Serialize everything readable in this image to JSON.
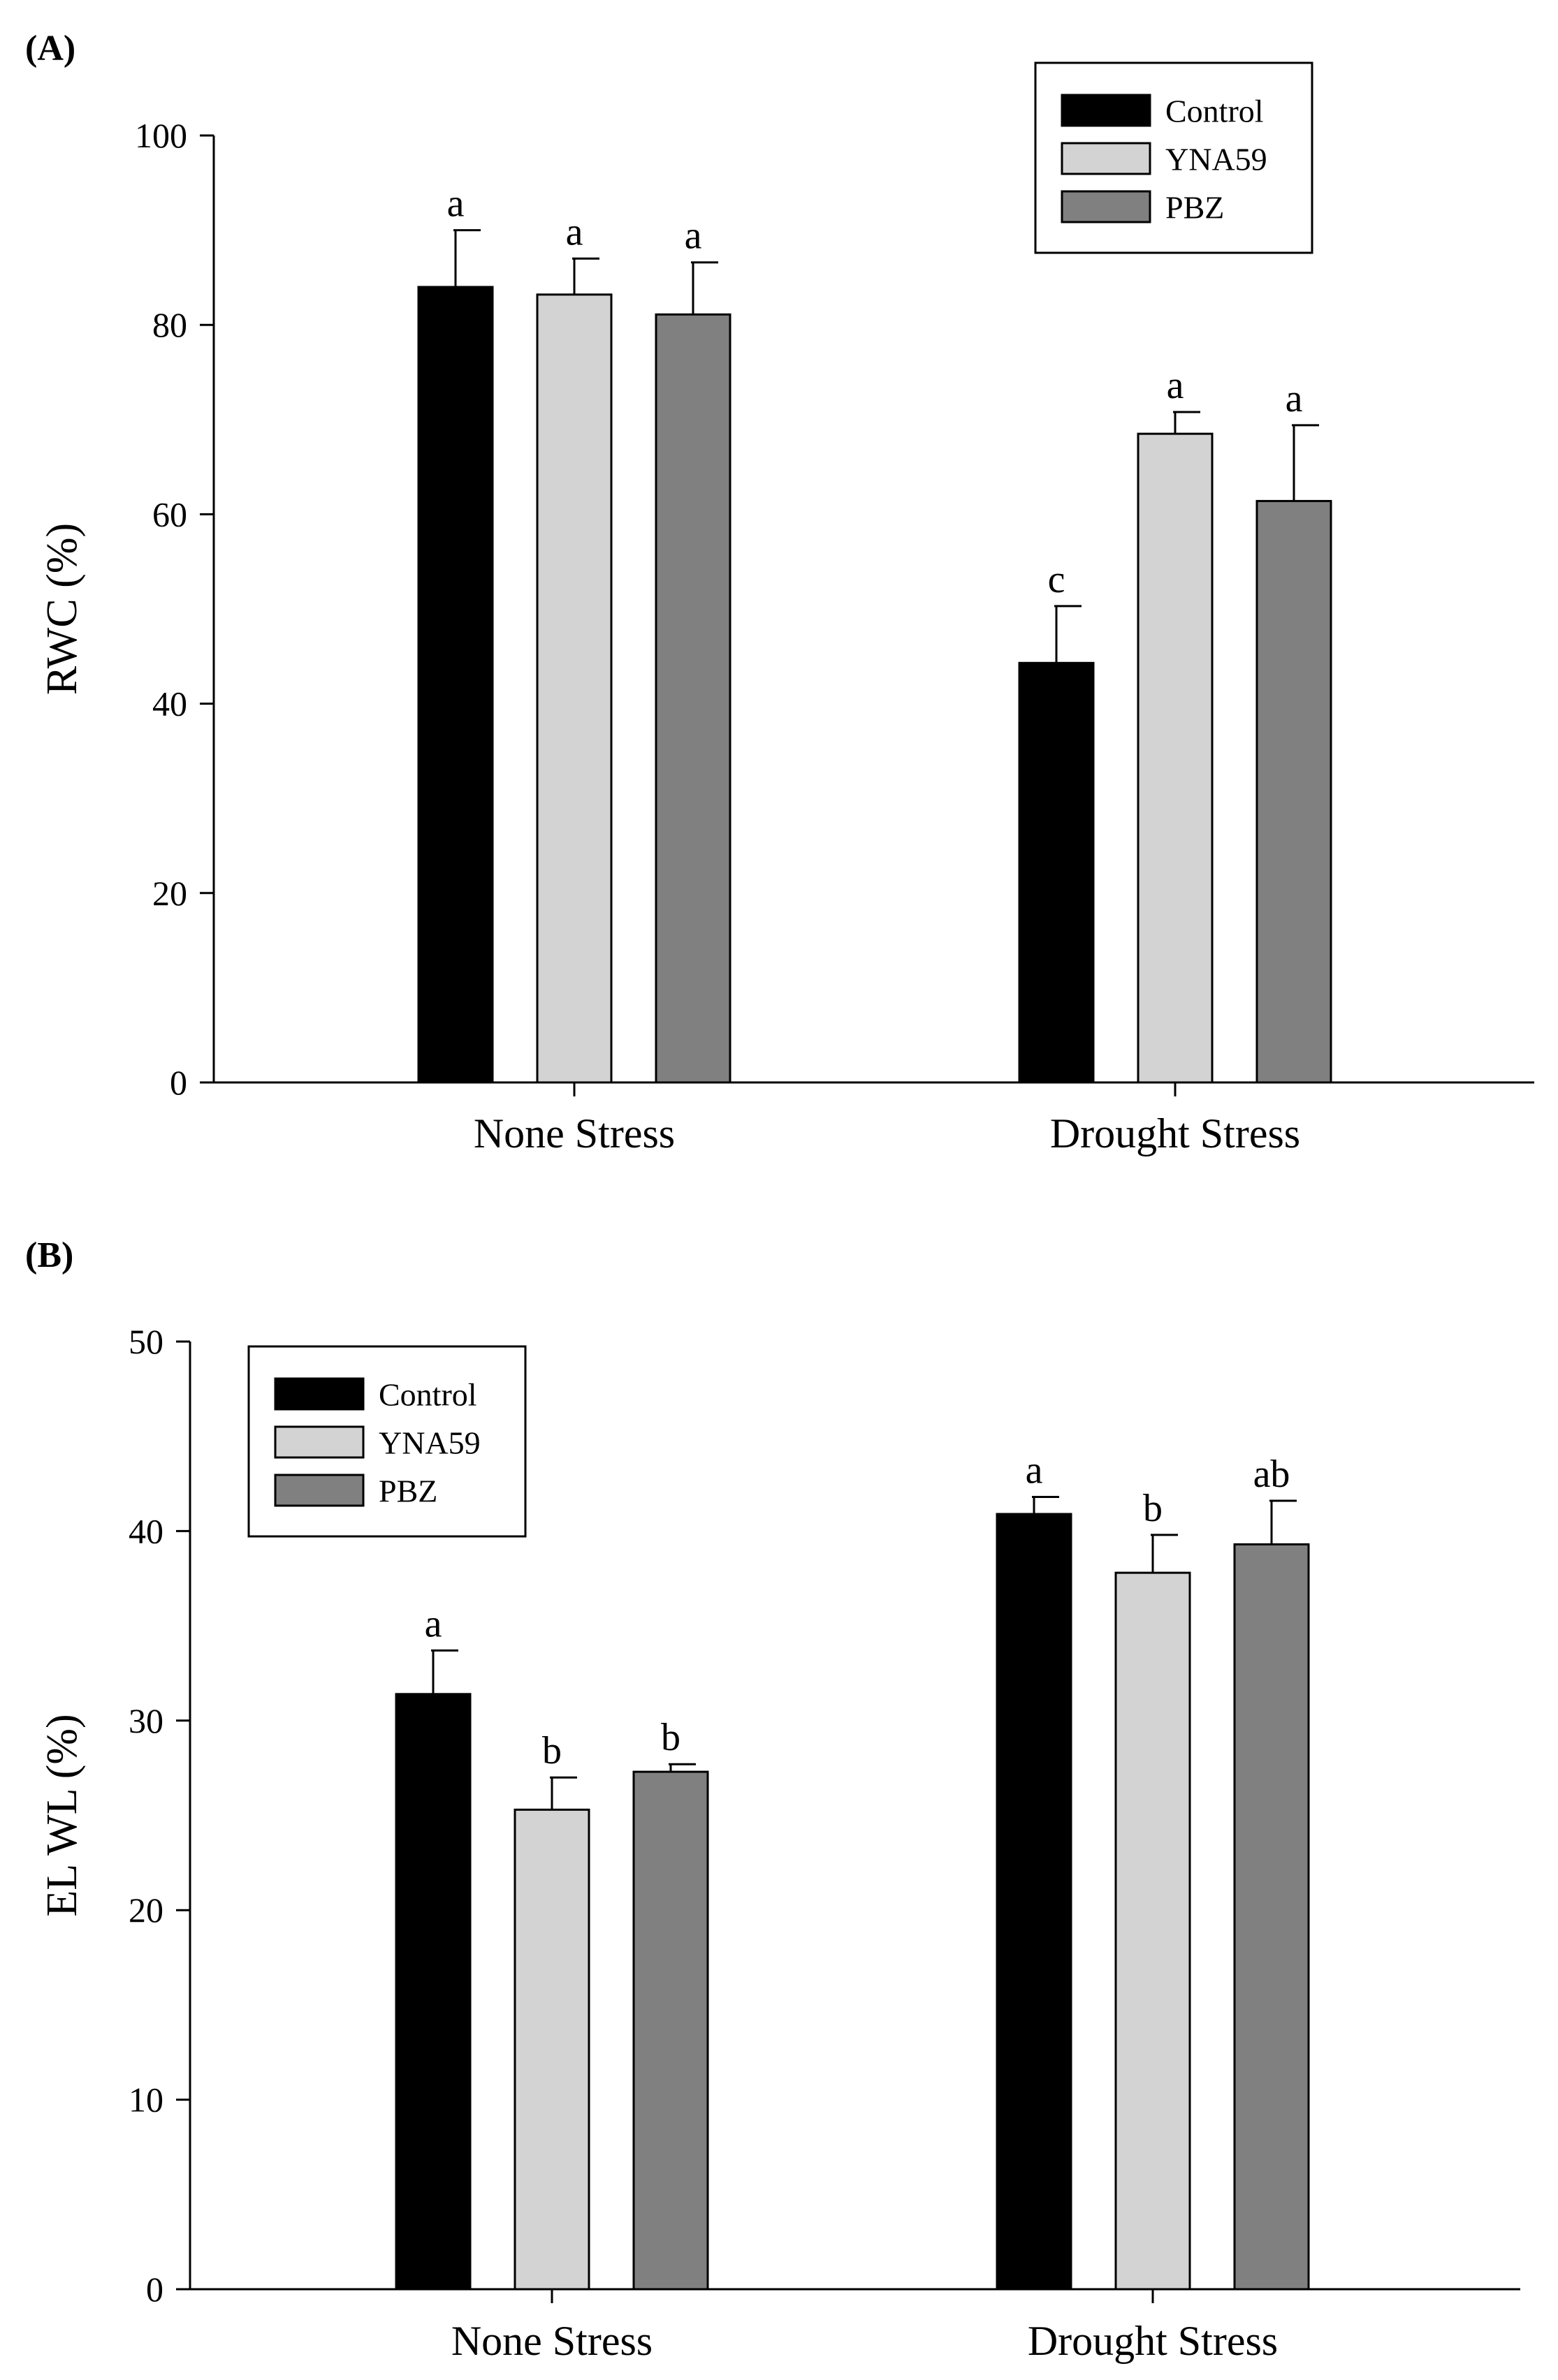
{
  "figure": {
    "colors": {
      "Control": "#000000",
      "YNA59": "#d3d3d3",
      "PBZ": "#808080"
    }
  },
  "chart_data": [
    {
      "type": "bar",
      "panel_label": "(A)",
      "title": "",
      "xlabel": "",
      "ylabel": "RWC (%)",
      "ylim": [
        0,
        100
      ],
      "yticks": [
        0,
        20,
        40,
        60,
        80,
        100
      ],
      "grid": false,
      "legend_position": "top-right",
      "categories": [
        "None Stress",
        "Drought Stress"
      ],
      "series": [
        {
          "name": "Control",
          "values": [
            84,
            44.3
          ],
          "errors": [
            6,
            6
          ],
          "letters": [
            "a",
            "c"
          ]
        },
        {
          "name": "YNA59",
          "values": [
            83.2,
            68.5
          ],
          "errors": [
            3.8,
            2.3
          ],
          "letters": [
            "a",
            "a"
          ]
        },
        {
          "name": "PBZ",
          "values": [
            81.1,
            61.4
          ],
          "errors": [
            5.5,
            8
          ],
          "letters": [
            "a",
            "a"
          ]
        }
      ]
    },
    {
      "type": "bar",
      "panel_label": "(B)",
      "title": "",
      "xlabel": "",
      "ylabel": "EL WL (%)",
      "ylim": [
        0,
        50
      ],
      "yticks": [
        0,
        10,
        20,
        30,
        40,
        50
      ],
      "grid": false,
      "legend_position": "top-left",
      "categories": [
        "None Stress",
        "Drought Stress"
      ],
      "series": [
        {
          "name": "Control",
          "values": [
            31.4,
            40.9
          ],
          "errors": [
            2.3,
            0.9
          ],
          "letters": [
            "a",
            "a"
          ]
        },
        {
          "name": "YNA59",
          "values": [
            25.3,
            37.8
          ],
          "errors": [
            1.7,
            2
          ],
          "letters": [
            "b",
            "b"
          ]
        },
        {
          "name": "PBZ",
          "values": [
            27.3,
            39.3
          ],
          "errors": [
            0.4,
            2.3
          ],
          "letters": [
            "b",
            "ab"
          ]
        }
      ]
    }
  ]
}
